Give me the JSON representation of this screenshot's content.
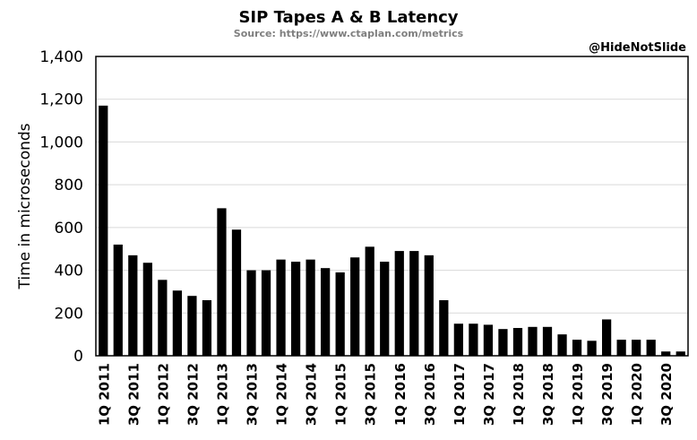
{
  "chart_data": {
    "type": "bar",
    "title": "SIP Tapes A & B Latency",
    "subtitle": "Source: https://www.ctaplan.com/metrics",
    "watermark": "@HideNotSlide",
    "ylabel": "Time in microseconds",
    "xlabel": "",
    "ylim": [
      0,
      1400
    ],
    "yticks": [
      "0",
      "200",
      "400",
      "600",
      "800",
      "1,000",
      "1,200",
      "1,400"
    ],
    "ytick_values": [
      0,
      200,
      400,
      600,
      800,
      1000,
      1200,
      1400
    ],
    "grid": true,
    "legend": "none",
    "bar_color": "#000000",
    "grid_color": "#d9d9d9",
    "categories": [
      "1Q 2011",
      "2Q 2011",
      "3Q 2011",
      "4Q 2011",
      "1Q 2012",
      "2Q 2012",
      "3Q 2012",
      "4Q 2012",
      "1Q 2013",
      "2Q 2013",
      "3Q 2013",
      "4Q 2013",
      "1Q 2014",
      "2Q 2014",
      "3Q 2014",
      "4Q 2014",
      "1Q 2015",
      "2Q 2015",
      "3Q 2015",
      "4Q 2015",
      "1Q 2016",
      "2Q 2016",
      "3Q 2016",
      "4Q 2016",
      "1Q 2017",
      "2Q 2017",
      "3Q 2017",
      "4Q 2017",
      "1Q 2018",
      "2Q 2018",
      "3Q 2018",
      "4Q 2018",
      "1Q 2019",
      "2Q 2019",
      "3Q 2019",
      "4Q 2019",
      "1Q 2020",
      "2Q 2020",
      "3Q 2020",
      "4Q 2020"
    ],
    "tick_labels": [
      "1Q 2011",
      "",
      "3Q 2011",
      "",
      "1Q 2012",
      "",
      "3Q 2012",
      "",
      "1Q 2013",
      "",
      "3Q 2013",
      "",
      "1Q 2014",
      "",
      "3Q 2014",
      "",
      "1Q 2015",
      "",
      "3Q 2015",
      "",
      "1Q 2016",
      "",
      "3Q 2016",
      "",
      "1Q 2017",
      "",
      "3Q 2017",
      "",
      "1Q 2018",
      "",
      "3Q 2018",
      "",
      "1Q 2019",
      "",
      "3Q 2019",
      "",
      "1Q 2020",
      "",
      "3Q 2020",
      ""
    ],
    "values": [
      1170,
      520,
      470,
      435,
      355,
      305,
      280,
      260,
      690,
      590,
      400,
      400,
      450,
      440,
      450,
      410,
      390,
      460,
      510,
      440,
      490,
      490,
      470,
      260,
      150,
      150,
      145,
      125,
      130,
      135,
      135,
      100,
      75,
      70,
      170,
      75,
      75,
      75,
      20,
      20
    ]
  }
}
